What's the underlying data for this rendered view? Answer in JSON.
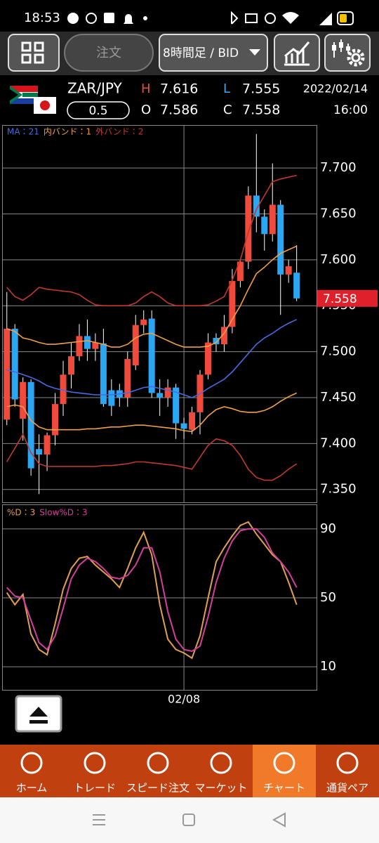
{
  "status_bar": {
    "time": "18:53"
  },
  "toolbar": {
    "order": "注文",
    "timeframe": "8時間足 / BID"
  },
  "quote": {
    "pair": "ZAR/JPY",
    "high_label": "H",
    "high": "7.616",
    "low_label": "L",
    "low": "7.555",
    "open_label": "O",
    "open": "7.586",
    "close_label": "C",
    "close": "7.558",
    "date": "2022/02/14",
    "time": "16:00",
    "lot": "0.5"
  },
  "chart_data": [
    {
      "type": "candlestick",
      "categories": [
        null,
        null,
        null,
        null,
        null,
        null,
        null,
        null,
        null,
        null,
        null,
        null,
        null,
        null,
        null,
        null,
        null,
        null,
        null,
        null,
        null,
        null,
        "02/08",
        null,
        null,
        null,
        null,
        null,
        null,
        null,
        null,
        null,
        null,
        null,
        null,
        null,
        null
      ],
      "open": [
        7.426,
        7.525,
        7.427,
        7.467,
        7.394,
        7.388,
        7.409,
        7.443,
        7.475,
        7.495,
        7.517,
        7.503,
        7.509,
        7.458,
        7.458,
        7.45,
        7.485,
        7.529,
        7.536,
        7.455,
        7.45,
        7.461,
        7.422,
        7.415,
        7.434,
        7.475,
        7.515,
        7.508,
        7.527,
        7.577,
        7.598,
        7.67,
        7.647,
        7.628,
        7.66,
        7.584,
        7.586
      ],
      "high": [
        7.565,
        7.53,
        7.472,
        7.47,
        7.41,
        7.412,
        7.455,
        7.49,
        7.51,
        7.53,
        7.535,
        7.52,
        7.525,
        7.47,
        7.465,
        7.5,
        7.54,
        7.545,
        7.545,
        7.47,
        7.47,
        7.465,
        7.428,
        7.44,
        7.48,
        7.52,
        7.52,
        7.54,
        7.59,
        7.6,
        7.68,
        7.737,
        7.655,
        7.705,
        7.665,
        7.6,
        7.616
      ],
      "low": [
        7.42,
        7.44,
        7.403,
        7.365,
        7.345,
        7.37,
        7.398,
        7.43,
        7.46,
        7.49,
        7.49,
        7.49,
        7.44,
        7.43,
        7.44,
        7.44,
        7.48,
        7.52,
        7.45,
        7.43,
        7.44,
        7.405,
        7.405,
        7.41,
        7.41,
        7.47,
        7.5,
        7.5,
        7.52,
        7.57,
        7.59,
        7.63,
        7.61,
        7.62,
        7.54,
        7.575,
        7.555
      ],
      "close": [
        7.525,
        7.448,
        7.467,
        7.373,
        7.388,
        7.409,
        7.443,
        7.475,
        7.495,
        7.517,
        7.503,
        7.51,
        7.443,
        7.441,
        7.45,
        7.492,
        7.529,
        7.535,
        7.455,
        7.45,
        7.461,
        7.422,
        7.416,
        7.434,
        7.475,
        7.51,
        7.508,
        7.527,
        7.577,
        7.598,
        7.67,
        7.647,
        7.628,
        7.66,
        7.584,
        7.593,
        7.558
      ],
      "up_color": "#f04a3c",
      "down_color": "#2ba6f2",
      "overlays": [
        {
          "name": "MA：21",
          "color": "#4a6ae0",
          "values": [
            7.48,
            7.478,
            7.475,
            7.472,
            7.468,
            7.463,
            7.46,
            7.458,
            7.456,
            7.455,
            7.454,
            7.453,
            7.453,
            7.453,
            7.454,
            7.455,
            7.458,
            7.461,
            7.462,
            7.46,
            7.458,
            7.456,
            7.453,
            7.45,
            7.454,
            7.46,
            7.465,
            7.47,
            7.478,
            7.488,
            7.498,
            7.508,
            7.515,
            7.52,
            7.526,
            7.531,
            7.535
          ]
        },
        {
          "name": "内バンド：1",
          "color": "#f0a048",
          "upper": [
            7.525,
            7.522,
            7.515,
            7.513,
            7.51,
            7.508,
            7.508,
            7.509,
            7.51,
            7.511,
            7.512,
            7.51,
            7.508,
            7.505,
            7.505,
            7.508,
            7.515,
            7.519,
            7.52,
            7.516,
            7.512,
            7.508,
            7.505,
            7.505,
            7.505,
            7.506,
            7.51,
            7.52,
            7.535,
            7.55,
            7.568,
            7.585,
            7.592,
            7.6,
            7.607,
            7.611,
            7.615
          ],
          "lower": [
            7.44,
            7.442,
            7.44,
            7.425,
            7.418,
            7.415,
            7.415,
            7.415,
            7.415,
            7.415,
            7.416,
            7.416,
            7.417,
            7.418,
            7.418,
            7.419,
            7.42,
            7.42,
            7.419,
            7.418,
            7.417,
            7.416,
            7.414,
            7.413,
            7.42,
            7.43,
            7.437,
            7.44,
            7.438,
            7.435,
            7.434,
            7.434,
            7.436,
            7.44,
            7.446,
            7.451,
            7.455
          ]
        },
        {
          "name": "外バンド：2",
          "color": "#c23a2c",
          "upper": [
            7.57,
            7.56,
            7.556,
            7.562,
            7.57,
            7.568,
            7.567,
            7.566,
            7.565,
            7.562,
            7.556,
            7.551,
            7.55,
            7.55,
            7.55,
            7.55,
            7.553,
            7.56,
            7.565,
            7.56,
            7.553,
            7.55,
            7.55,
            7.55,
            7.55,
            7.551,
            7.555,
            7.56,
            7.578,
            7.6,
            7.63,
            7.655,
            7.67,
            7.685,
            7.688,
            7.69,
            7.692
          ],
          "lower": [
            7.38,
            7.395,
            7.41,
            7.39,
            7.378,
            7.375,
            7.375,
            7.375,
            7.375,
            7.375,
            7.375,
            7.375,
            7.376,
            7.376,
            7.377,
            7.378,
            7.38,
            7.38,
            7.379,
            7.378,
            7.377,
            7.376,
            7.374,
            7.372,
            7.385,
            7.398,
            7.405,
            7.403,
            7.398,
            7.387,
            7.372,
            7.363,
            7.36,
            7.36,
            7.365,
            7.372,
            7.378
          ]
        }
      ],
      "ylim": [
        7.336,
        7.746
      ],
      "yticks": [
        {
          "value": 7.35,
          "label": "7.350"
        },
        {
          "value": 7.4,
          "label": "7.400"
        },
        {
          "value": 7.45,
          "label": "7.450"
        },
        {
          "value": 7.5,
          "label": "7.500"
        },
        {
          "value": 7.55,
          "label": "7.550"
        },
        {
          "value": 7.6,
          "label": "7.600"
        },
        {
          "value": 7.65,
          "label": "7.650"
        },
        {
          "value": 7.7,
          "label": "7.700"
        }
      ],
      "last_price": {
        "value": 7.558,
        "label": "7.558"
      },
      "grid": true
    },
    {
      "type": "line",
      "series": [
        {
          "name": "%D：3",
          "color": "#e0a050",
          "values": [
            53,
            46,
            52,
            29,
            20,
            17,
            35,
            55,
            67,
            73,
            74,
            69,
            65,
            61,
            56,
            67,
            79,
            88,
            75,
            46,
            26,
            20,
            18,
            15,
            28,
            50,
            71,
            79,
            86,
            92,
            94,
            87,
            81,
            75,
            71,
            59,
            46
          ]
        },
        {
          "name": "Slow%D：3",
          "color": "#d2409c",
          "values": [
            56,
            51,
            50,
            37,
            24,
            20,
            28,
            44,
            61,
            69,
            73,
            71,
            67,
            62,
            61,
            63,
            69,
            79,
            79,
            65,
            42,
            26,
            20,
            19,
            22,
            39,
            59,
            73,
            83,
            89,
            90,
            90,
            85,
            76,
            71,
            65,
            56
          ]
        }
      ],
      "ylim": [
        -3.4,
        103.8
      ],
      "yticks": [
        10,
        50,
        90
      ],
      "grid": true
    }
  ],
  "nav": {
    "items": [
      "ホーム",
      "トレード",
      "スピード注文",
      "マーケット",
      "チャート",
      "通貨ペア"
    ],
    "selected": 4
  }
}
